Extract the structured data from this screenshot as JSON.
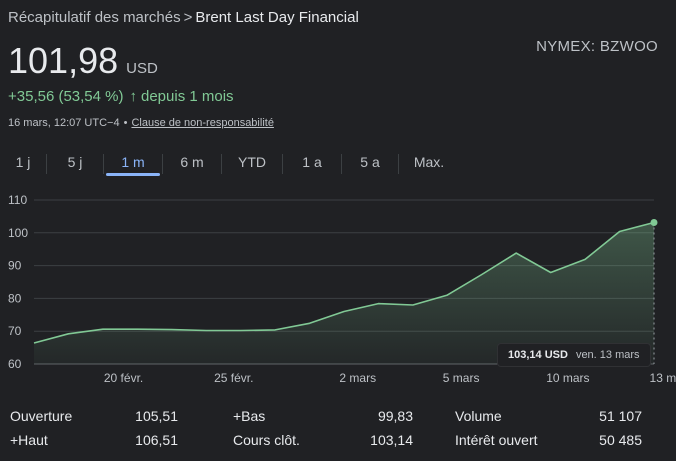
{
  "breadcrumb": {
    "parent": "Récapitulatif des marchés",
    "separator": ">",
    "current": "Brent Last Day Financial"
  },
  "ticker": "NYMEX: BZWOO",
  "price": {
    "value": "101,98",
    "currency": "USD"
  },
  "change": {
    "amount": "+35,56 (53,54 %)",
    "arrow": "↑",
    "period": "depuis 1 mois",
    "color": "#81c995"
  },
  "meta": {
    "timestamp": "16 mars, 12:07 UTC−4",
    "separator": "•",
    "disclaimer": "Clause de non-responsabilité"
  },
  "tabs": [
    {
      "label": "1 j",
      "active": false
    },
    {
      "label": "5 j",
      "active": false
    },
    {
      "label": "1 m",
      "active": true
    },
    {
      "label": "6 m",
      "active": false
    },
    {
      "label": "YTD",
      "active": false
    },
    {
      "label": "1 a",
      "active": false
    },
    {
      "label": "5 a",
      "active": false
    },
    {
      "label": "Max.",
      "active": false
    }
  ],
  "tooltip": {
    "value": "103,14 USD",
    "date": "ven. 13 mars"
  },
  "chart_data": {
    "type": "area",
    "title": "Brent Last Day Financial",
    "xlabel": "",
    "ylabel": "",
    "ylim": [
      60,
      110
    ],
    "yticks": [
      110,
      100,
      90,
      80,
      70,
      60
    ],
    "xlim": [
      0,
      18
    ],
    "xticks": [
      {
        "label": "20 févr.",
        "x": 2.6
      },
      {
        "label": "25 févr.",
        "x": 5.8
      },
      {
        "label": "2 mars",
        "x": 9.4
      },
      {
        "label": "5 mars",
        "x": 12.4
      },
      {
        "label": "10 mars",
        "x": 15.5
      },
      {
        "label": "13 mars",
        "x": 18.5
      }
    ],
    "x": [
      0,
      1,
      2,
      3,
      4,
      5,
      6,
      7,
      8,
      9,
      10,
      11,
      12,
      13,
      14,
      15,
      16,
      17,
      18
    ],
    "values": [
      66.4,
      69.2,
      70.6,
      70.6,
      70.5,
      70.2,
      70.2,
      70.4,
      72.4,
      76.0,
      78.4,
      78.0,
      81.0,
      87.3,
      93.8,
      87.9,
      91.9,
      100.4,
      103.14
    ],
    "color": "#81c995",
    "grid": true
  },
  "stats": [
    {
      "label": "Ouverture",
      "value": "105,51"
    },
    {
      "label": "+Haut",
      "value": "106,51"
    },
    {
      "label": "+Bas",
      "value": "99,83"
    },
    {
      "label": "Cours clôt.",
      "value": "103,14"
    },
    {
      "label": "Volume",
      "value": "51 107"
    },
    {
      "label": "Intérêt ouvert",
      "value": "50 485"
    }
  ]
}
